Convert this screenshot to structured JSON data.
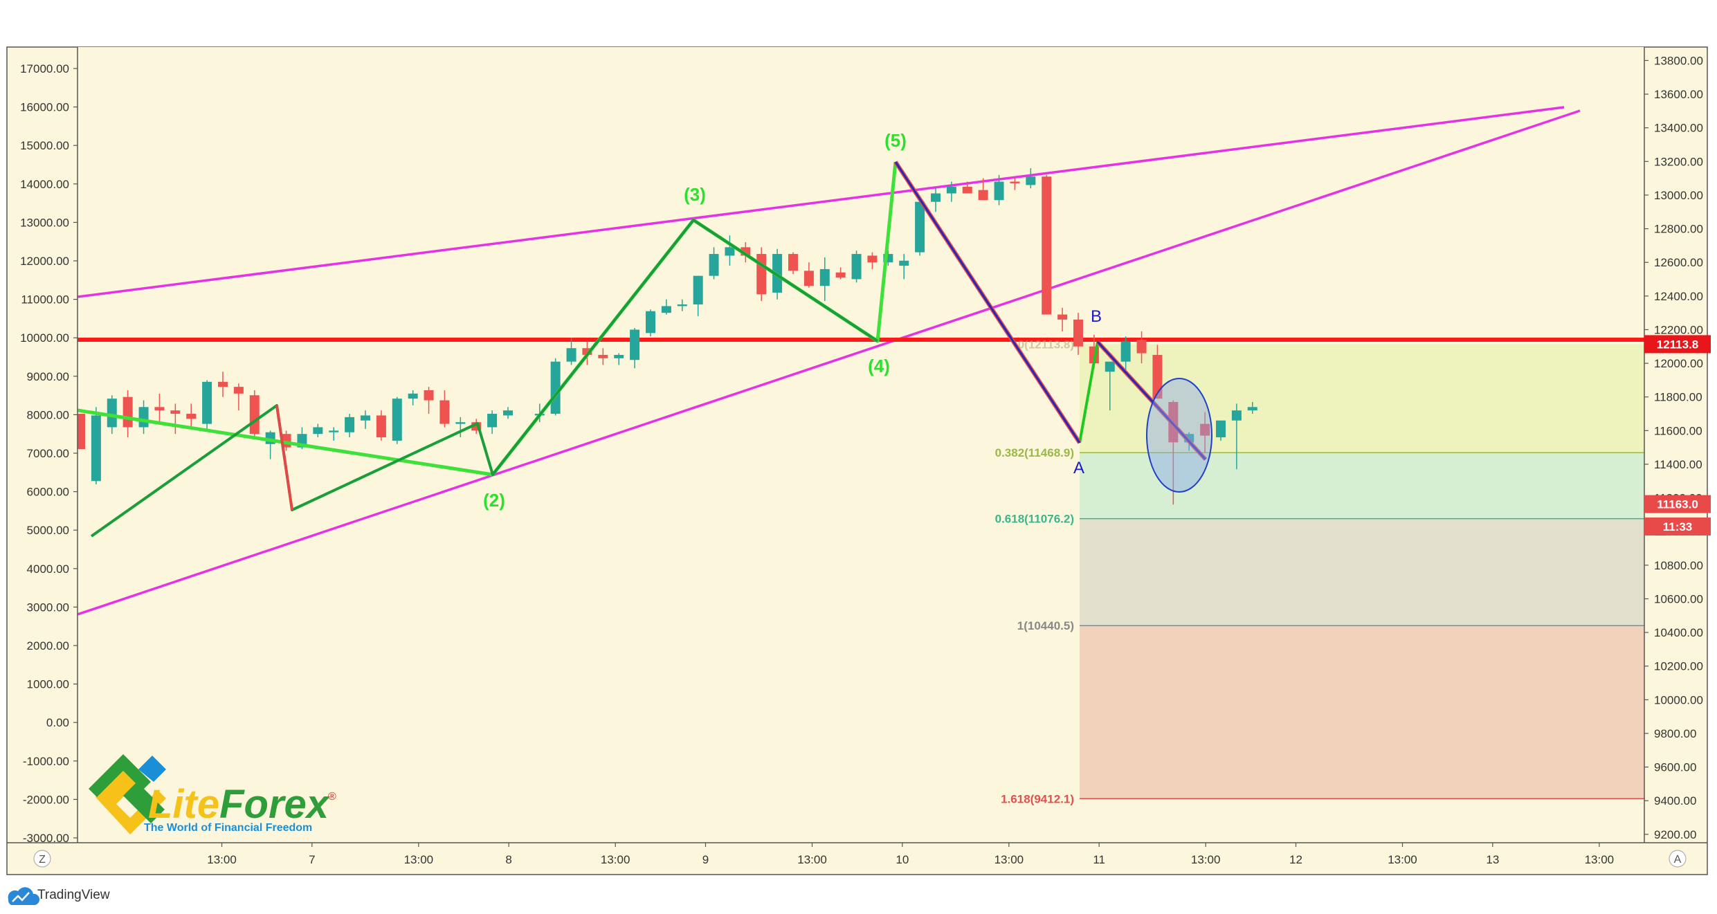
{
  "chart_data": {
    "type": "candlestick",
    "right_axis": {
      "ticks": [
        "13800.00",
        "13600.00",
        "13400.00",
        "13200.00",
        "13000.00",
        "12800.00",
        "12600.00",
        "12400.00",
        "12200.00",
        "12000.00",
        "11800.00",
        "11600.00",
        "11400.00",
        "11200.00",
        "11000.00",
        "10800.00",
        "10600.00",
        "10400.00",
        "10200.00",
        "10000.00",
        "9800.00",
        "9600.00",
        "9400.00",
        "9200.00"
      ],
      "range": [
        9150,
        13880
      ]
    },
    "left_axis": {
      "ticks": [
        "17000.00",
        "16000.00",
        "15000.00",
        "14000.00",
        "13000.00",
        "12000.00",
        "11000.00",
        "10000.00",
        "9000.00",
        "8000.00",
        "7000.00",
        "6000.00",
        "5000.00",
        "4000.00",
        "3000.00",
        "2000.00",
        "1000.00",
        "0.00",
        "-1000.00",
        "-2000.00",
        "-3000.00"
      ]
    },
    "x_axis": {
      "ticks": [
        "13:00",
        "7",
        "13:00",
        "8",
        "13:00",
        "9",
        "13:00",
        "10",
        "13:00",
        "11",
        "13:00",
        "12",
        "13:00",
        "13",
        "13:00"
      ],
      "tick_hours": [
        13,
        24,
        37,
        48,
        61,
        72,
        85,
        96,
        109,
        120,
        133,
        144,
        157,
        168,
        181
      ],
      "hour_range": [
        -4.6,
        186.5
      ]
    },
    "candles_4h": [
      [
        -4,
        11700,
        11700,
        11490,
        11490
      ],
      [
        0,
        11300,
        11740,
        11280,
        11690
      ],
      [
        4,
        11620,
        11810,
        11580,
        11790
      ],
      [
        8,
        11800,
        11840,
        11560,
        11620
      ],
      [
        12,
        11620,
        11780,
        11580,
        11740
      ],
      [
        16,
        11740,
        11820,
        11640,
        11720
      ],
      [
        20,
        11720,
        11760,
        11580,
        11700
      ],
      [
        24,
        11700,
        11760,
        11620,
        11670
      ],
      [
        28,
        11640,
        11900,
        11600,
        11890
      ],
      [
        32,
        11890,
        11950,
        11800,
        11860
      ],
      [
        36,
        11860,
        11880,
        11720,
        11820
      ],
      [
        40,
        11810,
        11840,
        11560,
        11580
      ],
      [
        44,
        11520,
        11600,
        11430,
        11590
      ],
      [
        48,
        11580,
        11600,
        11480,
        11500
      ],
      [
        52,
        11500,
        11620,
        11490,
        11580
      ],
      [
        56,
        11580,
        11640,
        11560,
        11620
      ],
      [
        60,
        11590,
        11620,
        11540,
        11600
      ],
      [
        64,
        11590,
        11700,
        11560,
        11680
      ],
      [
        68,
        11660,
        11720,
        11610,
        11690
      ],
      [
        72,
        11690,
        11720,
        11540,
        11560
      ],
      [
        76,
        11540,
        11800,
        11520,
        11790
      ],
      [
        80,
        11790,
        11840,
        11750,
        11820
      ],
      [
        84,
        11840,
        11860,
        11700,
        11780
      ],
      [
        88,
        11780,
        11840,
        11620,
        11640
      ],
      [
        92,
        11640,
        11680,
        11560,
        11650
      ],
      [
        96,
        11650,
        11670,
        11580,
        11600
      ],
      [
        100,
        11620,
        11720,
        11580,
        11700
      ],
      [
        104,
        11690,
        11740,
        11670,
        11720
      ],
      [
        112,
        11690,
        11760,
        11650,
        11700
      ],
      [
        116,
        11700,
        12030,
        11690,
        12010
      ],
      [
        120,
        12010,
        12150,
        11990,
        12090
      ],
      [
        124,
        12090,
        12130,
        11990,
        12050
      ],
      [
        128,
        12050,
        12090,
        11990,
        12030
      ],
      [
        132,
        12030,
        12060,
        11990,
        12050
      ],
      [
        136,
        12020,
        12210,
        11970,
        12200
      ],
      [
        140,
        12180,
        12320,
        12160,
        12310
      ],
      [
        144,
        12300,
        12380,
        12290,
        12340
      ],
      [
        148,
        12340,
        12380,
        12310,
        12350
      ],
      [
        152,
        12350,
        12520,
        12280,
        12520
      ],
      [
        156,
        12520,
        12690,
        12500,
        12650
      ],
      [
        160,
        12640,
        12760,
        12580,
        12690
      ],
      [
        164,
        12690,
        12720,
        12600,
        12640
      ],
      [
        168,
        12650,
        12690,
        12370,
        12410
      ],
      [
        172,
        12420,
        12680,
        12380,
        12650
      ],
      [
        176,
        12650,
        12660,
        12530,
        12550
      ],
      [
        180,
        12550,
        12600,
        12450,
        12460
      ],
      [
        184,
        12460,
        12630,
        12370,
        12560
      ],
      [
        188,
        12540,
        12570,
        12500,
        12510
      ],
      [
        192,
        12500,
        12670,
        12480,
        12650
      ],
      [
        196,
        12640,
        12660,
        12560,
        12600
      ],
      [
        200,
        12600,
        12670,
        12580,
        12650
      ],
      [
        204,
        12580,
        12650,
        12500,
        12610
      ],
      [
        208,
        12660,
        12990,
        12640,
        12960
      ],
      [
        212,
        12960,
        13040,
        12900,
        13010
      ],
      [
        216,
        13010,
        13080,
        12960,
        13050
      ],
      [
        220,
        13050,
        13080,
        13010,
        13010
      ],
      [
        224,
        13030,
        13100,
        12980,
        12970
      ],
      [
        228,
        12970,
        13120,
        12940,
        13080
      ],
      [
        232,
        13080,
        13100,
        13030,
        13070
      ],
      [
        236,
        13060,
        13160,
        13040,
        13110
      ],
      [
        240,
        13110,
        13120,
        12290,
        12290
      ],
      [
        244,
        12290,
        12330,
        12190,
        12260
      ],
      [
        248,
        12260,
        12300,
        12050,
        12100
      ],
      [
        252,
        12100,
        12170,
        11970,
        12000
      ],
      [
        256,
        11950,
        12000,
        11720,
        12010
      ],
      [
        260,
        12010,
        12160,
        11960,
        12130
      ],
      [
        264,
        12140,
        12190,
        12000,
        12060
      ],
      [
        268,
        12050,
        12110,
        11790,
        11790
      ],
      [
        272,
        11770,
        11780,
        11160,
        11530
      ],
      [
        276,
        11530,
        11590,
        11480,
        11580
      ],
      [
        280,
        11640,
        11710,
        11470,
        11570
      ],
      [
        284,
        11560,
        11650,
        11540,
        11660
      ],
      [
        288,
        11660,
        11760,
        11370,
        11720
      ],
      [
        292,
        11720,
        11770,
        11700,
        11740
      ]
    ],
    "price_lines": [
      {
        "name": "horizontal-level",
        "value": 12113.8,
        "color": "#ff1a1a"
      }
    ],
    "price_tags": [
      {
        "label": "12113.8",
        "value": 12113.8,
        "color": "#e8151a"
      },
      {
        "label": "11163.0",
        "value": 11163.0,
        "color": "#e84a4a"
      },
      {
        "label": "11:33",
        "value": 11030,
        "color": "#e84a4a"
      }
    ],
    "wave_labels": [
      "(2)",
      "(3)",
      "(4)",
      "(5)"
    ],
    "ab_labels": [
      "A",
      "B"
    ],
    "fib_levels": [
      {
        "label": "0.382(11468.9)",
        "value": 11468.9,
        "color": "#9ab84a"
      },
      {
        "label": "0.618(11076.2)",
        "value": 11076.2,
        "color": "#3bb68a"
      },
      {
        "label": "1(10440.5)",
        "value": 10440.5,
        "color": "#888888"
      },
      {
        "label": "1.618(9412.1)",
        "value": 9412.1,
        "color": "#e05050"
      }
    ],
    "fib_hidden_label": "0(12113.8)",
    "fib_zones": [
      {
        "from": 12113.8,
        "to": 11468.9,
        "color": "#eef2bc"
      },
      {
        "from": 11468.9,
        "to": 11076.2,
        "color": "#d6eed2"
      },
      {
        "from": 11076.2,
        "to": 10440.5,
        "color": "#e2e0cc"
      },
      {
        "from": 10440.5,
        "to": 9412.1,
        "color": "#f3d2bc"
      }
    ],
    "colors": {
      "up": "#26a69a",
      "down": "#ef5350",
      "background": "#fcf7dc",
      "wave": "#1fd11f",
      "channel": "#e632e6"
    },
    "grid": false,
    "legend": "none"
  },
  "ui": {
    "left_corner_button": "Z",
    "right_corner_button": "A",
    "logo_text_lite": "Lite",
    "logo_text_forex": "Forex",
    "logo_registered": "®",
    "logo_tagline": "The World of Financial Freedom",
    "footer_brand": "TradingView"
  }
}
